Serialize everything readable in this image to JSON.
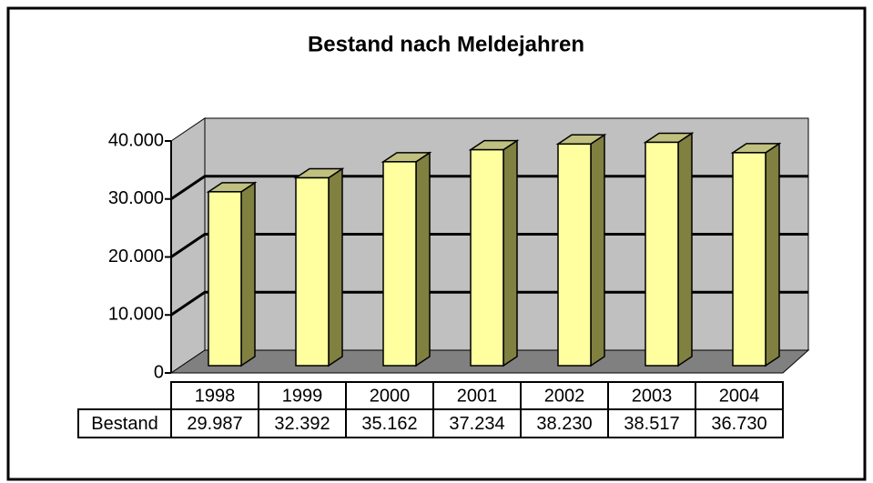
{
  "chart_data": {
    "type": "bar3d",
    "title": "Bestand nach Meldejahren",
    "categories": [
      "1998",
      "1999",
      "2000",
      "2001",
      "2002",
      "2003",
      "2004"
    ],
    "series": [
      {
        "name": "Bestand",
        "color": "#ffffa0",
        "values": [
          29987,
          32392,
          35162,
          37234,
          38230,
          38517,
          36730
        ],
        "value_labels": [
          "29.987",
          "32.392",
          "35.162",
          "37.234",
          "38.230",
          "38.517",
          "36.730"
        ]
      }
    ],
    "ylim": [
      0,
      40000
    ],
    "yticks": [
      0,
      {
        "value": 10000,
        "label": "10.000"
      },
      {
        "value": 20000,
        "label": "20.000"
      },
      {
        "value": 30000,
        "label": "30.000"
      },
      {
        "value": 40000,
        "label": "40.000"
      }
    ],
    "grid": true
  }
}
